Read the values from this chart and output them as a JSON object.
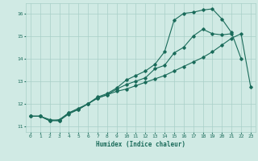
{
  "title": "",
  "xlabel": "Humidex (Indice chaleur)",
  "ylabel": "",
  "xlim": [
    -0.5,
    23.5
  ],
  "ylim": [
    10.75,
    16.45
  ],
  "xticks": [
    0,
    1,
    2,
    3,
    4,
    5,
    6,
    7,
    8,
    9,
    10,
    11,
    12,
    13,
    14,
    15,
    16,
    17,
    18,
    19,
    20,
    21,
    22,
    23
  ],
  "yticks": [
    11,
    12,
    13,
    14,
    15,
    16
  ],
  "background_color": "#d0eae4",
  "grid_color": "#a8cfc8",
  "line_color": "#1a6b5a",
  "line1_x": [
    0,
    1,
    2,
    3,
    4,
    5,
    6,
    7,
    8,
    9,
    10,
    11,
    12,
    13,
    14,
    15,
    16,
    17,
    18,
    19,
    20,
    21,
    22,
    23
  ],
  "line1_y": [
    11.45,
    11.45,
    11.25,
    11.25,
    11.55,
    11.75,
    12.0,
    12.25,
    12.4,
    12.55,
    12.65,
    12.8,
    12.95,
    13.1,
    13.25,
    13.45,
    13.65,
    13.85,
    14.05,
    14.3,
    14.6,
    14.9,
    15.1,
    12.75
  ],
  "line2_x": [
    0,
    1,
    2,
    3,
    4,
    5,
    6,
    7,
    8,
    9,
    10,
    11,
    12,
    13,
    14,
    15,
    16,
    17,
    18,
    19,
    20,
    21
  ],
  "line2_y": [
    11.45,
    11.45,
    11.3,
    11.25,
    11.6,
    11.75,
    12.0,
    12.25,
    12.4,
    12.65,
    12.85,
    13.0,
    13.15,
    13.55,
    13.7,
    14.25,
    14.5,
    15.0,
    15.3,
    15.1,
    15.05,
    15.1
  ],
  "line3_x": [
    0,
    1,
    2,
    3,
    4,
    5,
    6,
    7,
    8,
    9,
    10,
    11,
    12,
    13,
    14,
    15,
    16,
    17,
    18,
    19,
    20,
    21,
    22
  ],
  "line3_y": [
    11.45,
    11.45,
    11.25,
    11.3,
    11.6,
    11.8,
    12.0,
    12.3,
    12.45,
    12.7,
    13.05,
    13.25,
    13.45,
    13.75,
    14.3,
    15.7,
    16.0,
    16.05,
    16.15,
    16.2,
    15.75,
    15.15,
    14.0
  ]
}
